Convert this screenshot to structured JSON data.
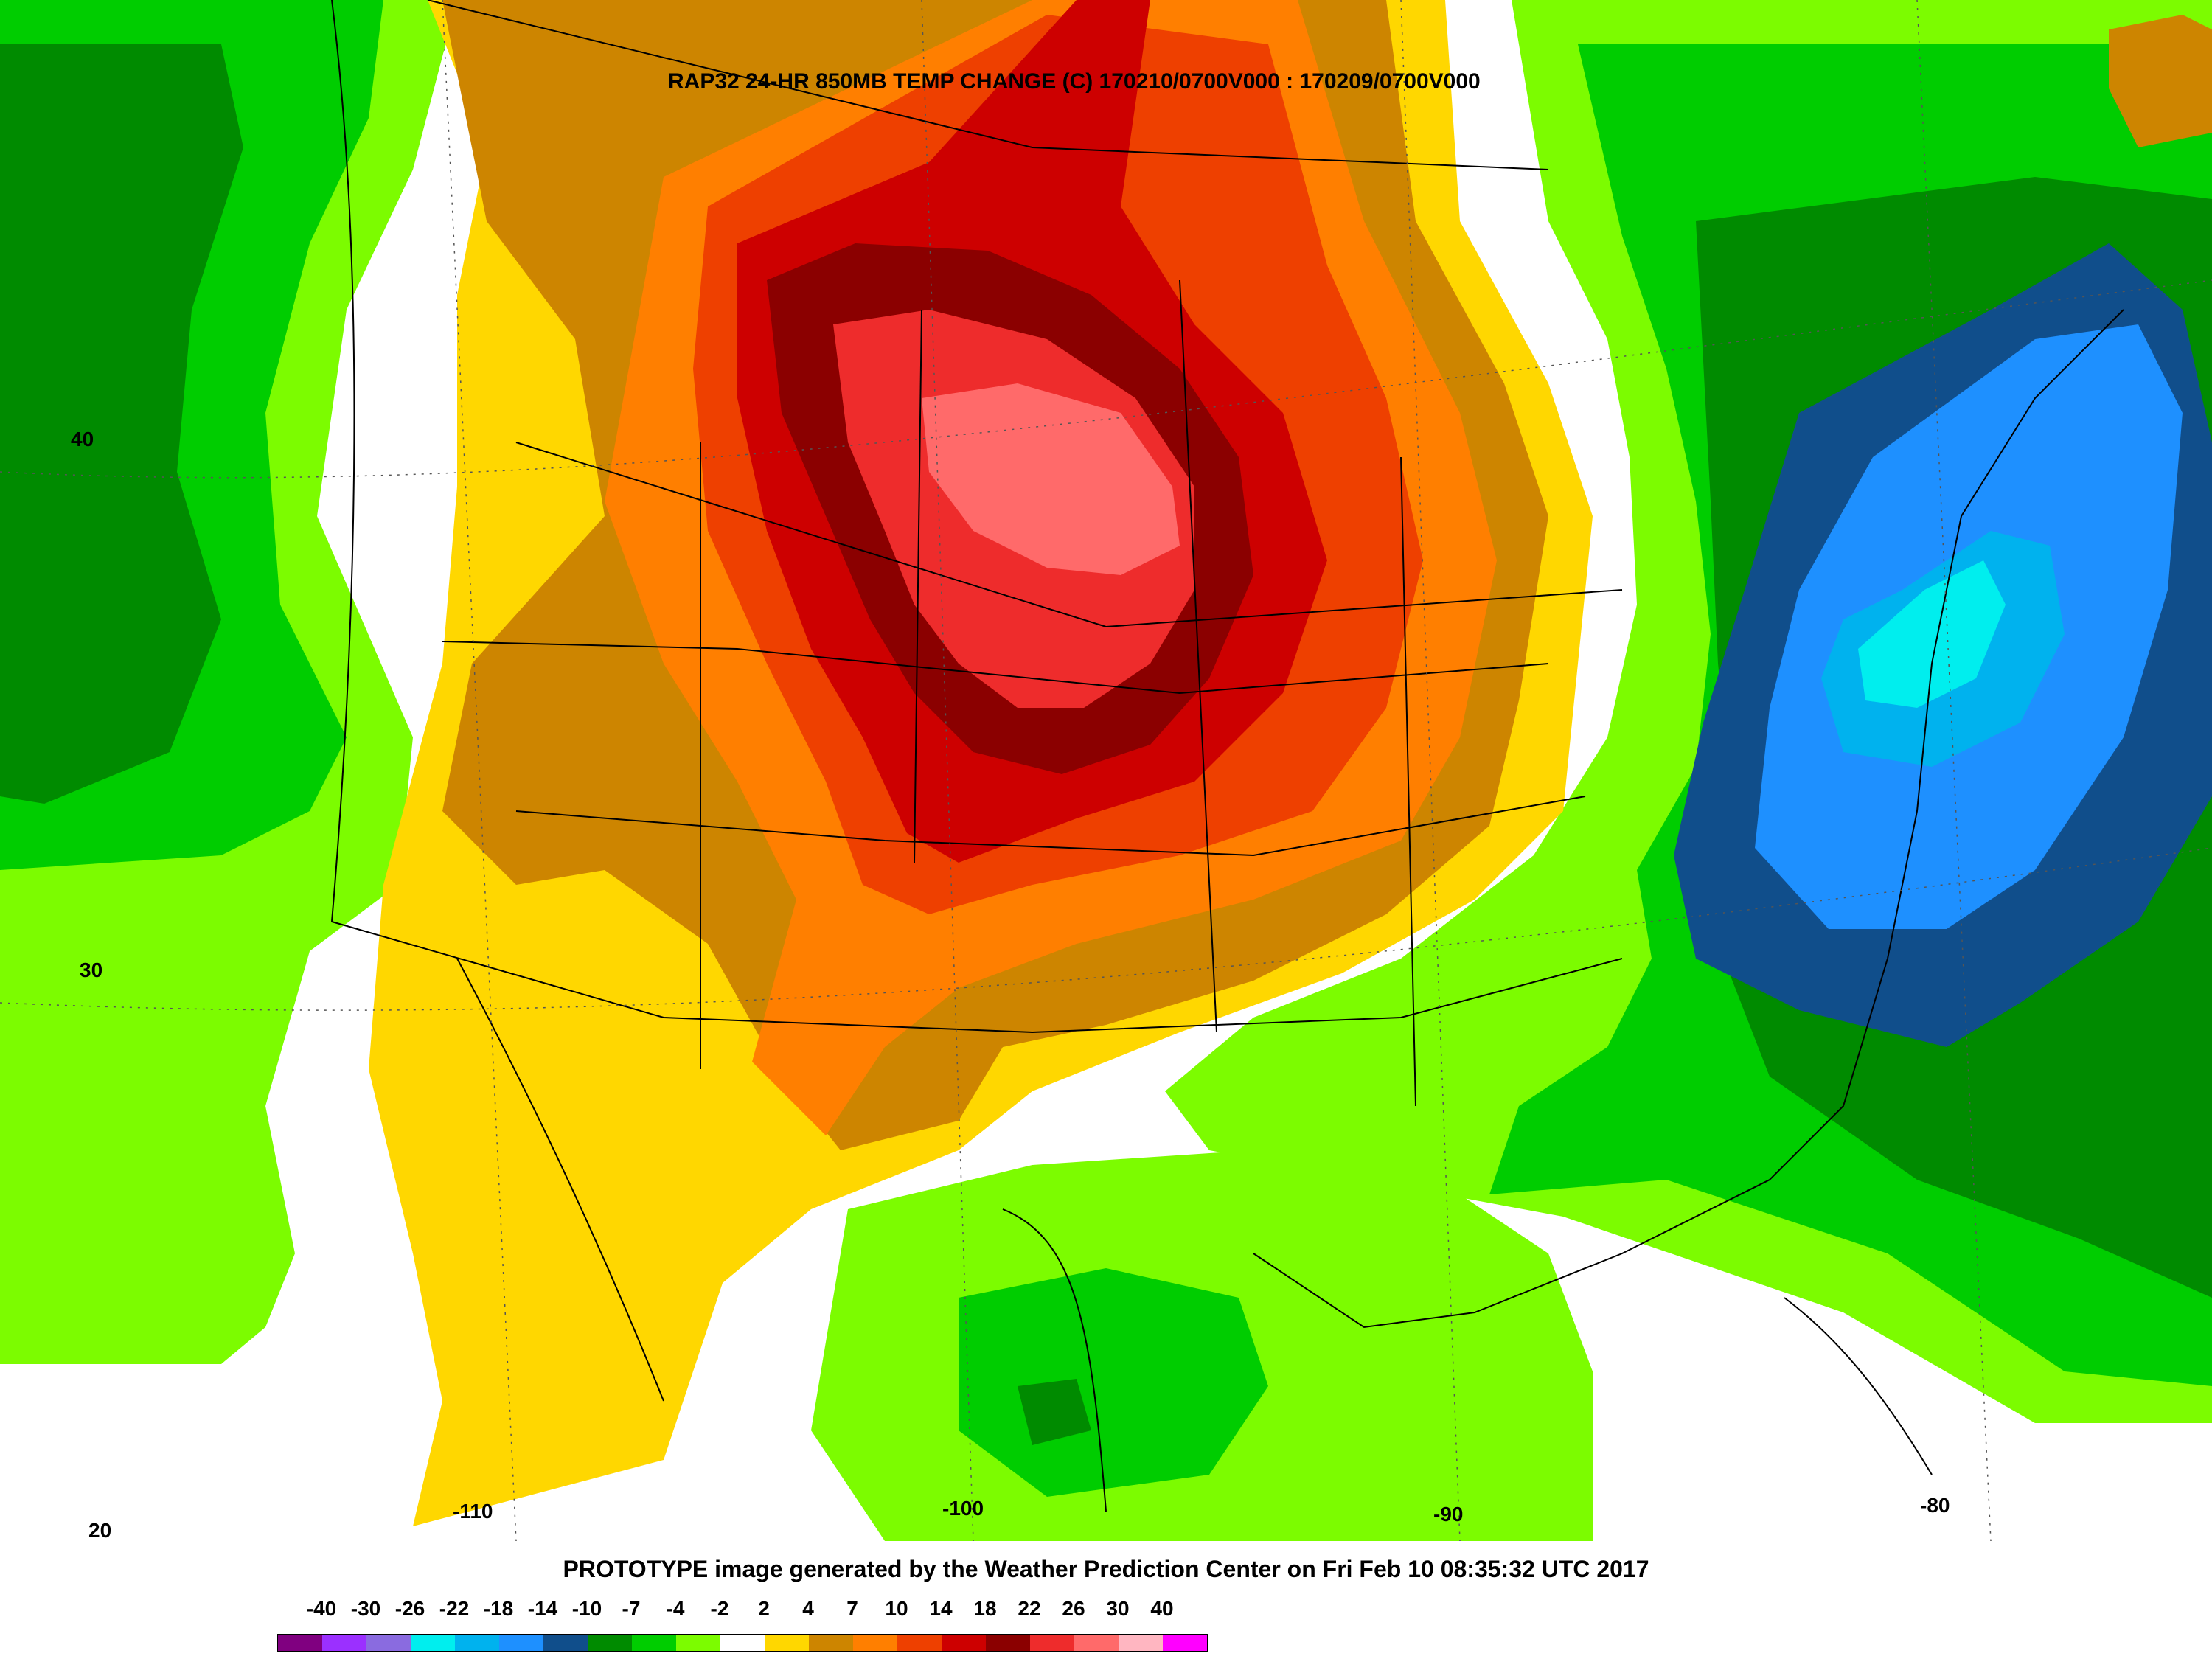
{
  "title": "RAP32 24-HR 850MB TEMP CHANGE (C) 170210/0700V000 : 170209/0700V000",
  "credit": "PROTOTYPE image generated by the Weather Prediction Center on Fri Feb 10 08:35:32 UTC 2017",
  "lat_labels": [
    "40",
    "30",
    "20"
  ],
  "lon_labels": [
    "-110",
    "-100",
    "-90",
    "-80"
  ],
  "legend": {
    "ticks": [
      "-40",
      "-30",
      "-26",
      "-22",
      "-18",
      "-14",
      "-10",
      "-7",
      "-4",
      "-2",
      "2",
      "4",
      "7",
      "10",
      "14",
      "18",
      "22",
      "26",
      "30",
      "40"
    ],
    "colors": [
      "#800080",
      "#9b30ff",
      "#8a6be0",
      "#00eeee",
      "#00b2ee",
      "#1e90ff",
      "#104e8b",
      "#008b00",
      "#00cd00",
      "#7cfc00",
      "#ffffff",
      "#ffd700",
      "#cd8500",
      "#ff7f00",
      "#ee4000",
      "#cd0000",
      "#8b0000",
      "#ee2c2c",
      "#ff6a6a",
      "#ffb6c1",
      "#ff00ff"
    ]
  },
  "colors": {
    "dark_green": "#008b00",
    "green": "#00cd00",
    "light_green": "#7cfc00",
    "gold": "#ffd700",
    "brown": "#cd8500",
    "orange": "#ff7f00",
    "orange_red": "#ee4000",
    "red": "#cd0000",
    "dark_red": "#8b0000",
    "firebrick": "#ee2c2c",
    "salmon": "#ff6a6a",
    "navy": "#104e8b",
    "dodger_blue": "#1e90ff",
    "deep_sky_blue": "#00b2ee",
    "cyan": "#00eeee"
  }
}
